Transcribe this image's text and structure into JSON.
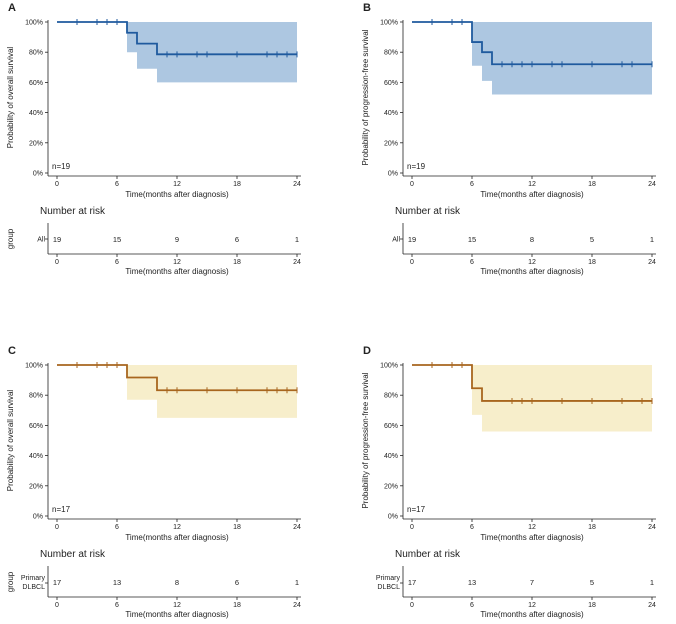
{
  "chart_data": [
    {
      "type": "line",
      "panel": "A",
      "ylabel": "Probability of overall survival",
      "xlabel": "Time(months after diagnosis)",
      "xticks": [
        "0",
        "6",
        "12",
        "18",
        "24"
      ],
      "yticks": [
        "0%",
        "20%",
        "40%",
        "60%",
        "80%",
        "100%"
      ],
      "xlim": [
        0,
        24
      ],
      "ylim": [
        0,
        1
      ],
      "color": "#1f5a9e",
      "band_color": "#a9c4df",
      "n_label": "n=19",
      "steps": [
        [
          0,
          1.0
        ],
        [
          7,
          0.929
        ],
        [
          8,
          0.857
        ],
        [
          10,
          0.786
        ],
        [
          24,
          0.786
        ]
      ],
      "band": [
        [
          0,
          1.0,
          1.0
        ],
        [
          7,
          1.0,
          0.8
        ],
        [
          8,
          1.0,
          0.69
        ],
        [
          10,
          1.0,
          0.6
        ],
        [
          24,
          1.0,
          0.6
        ]
      ],
      "censors": [
        2,
        4,
        5,
        6,
        11,
        12,
        14,
        15,
        18,
        21,
        22,
        23,
        24
      ],
      "risk": {
        "title": "Number at risk",
        "group_axis": "group",
        "group": "All",
        "times": [
          0,
          6,
          12,
          18,
          24
        ],
        "values": [
          "19",
          "15",
          "9",
          "6",
          "1"
        ],
        "xlabel": "Time(months after diagnosis)"
      }
    },
    {
      "type": "line",
      "panel": "B",
      "ylabel": "Probability of progression-free survival",
      "xlabel": "Time(months after diagnosis)",
      "xticks": [
        "0",
        "6",
        "12",
        "18",
        "24"
      ],
      "yticks": [
        "0%",
        "20%",
        "40%",
        "60%",
        "80%",
        "100%"
      ],
      "xlim": [
        0,
        24
      ],
      "ylim": [
        0,
        1
      ],
      "color": "#1f5a9e",
      "band_color": "#a9c4df",
      "n_label": "n=19",
      "steps": [
        [
          0,
          1.0
        ],
        [
          6,
          0.867
        ],
        [
          7,
          0.8
        ],
        [
          8,
          0.72
        ],
        [
          24,
          0.72
        ]
      ],
      "band": [
        [
          0,
          1.0,
          1.0
        ],
        [
          6,
          1.0,
          0.71
        ],
        [
          7,
          1.0,
          0.61
        ],
        [
          8,
          1.0,
          0.52
        ],
        [
          24,
          1.0,
          0.52
        ]
      ],
      "censors": [
        2,
        4,
        5,
        9,
        10,
        11,
        12,
        14,
        15,
        18,
        21,
        22,
        24
      ],
      "risk": {
        "title": "Number at risk",
        "group_axis": "",
        "group": "All",
        "times": [
          0,
          6,
          12,
          18,
          24
        ],
        "values": [
          "19",
          "15",
          "8",
          "5",
          "1"
        ],
        "xlabel": "Time(months after diagnosis)"
      }
    },
    {
      "type": "line",
      "panel": "C",
      "ylabel": "Probability of overall survival",
      "xlabel": "Time(months after diagnosis)",
      "xticks": [
        "0",
        "6",
        "12",
        "18",
        "24"
      ],
      "yticks": [
        "0%",
        "20%",
        "40%",
        "60%",
        "80%",
        "100%"
      ],
      "xlim": [
        0,
        24
      ],
      "ylim": [
        0,
        1
      ],
      "color": "#a8661e",
      "band_color": "#f7edc8",
      "n_label": "n=17",
      "steps": [
        [
          0,
          1.0
        ],
        [
          7,
          0.917
        ],
        [
          10,
          0.833
        ],
        [
          24,
          0.833
        ]
      ],
      "band": [
        [
          0,
          1.0,
          1.0
        ],
        [
          7,
          1.0,
          0.77
        ],
        [
          10,
          1.0,
          0.65
        ],
        [
          24,
          1.0,
          0.65
        ]
      ],
      "censors": [
        2,
        4,
        5,
        6,
        11,
        12,
        15,
        18,
        21,
        22,
        23,
        24
      ],
      "risk": {
        "title": "Number at risk",
        "group_axis": "group",
        "group_lines": [
          "Primary",
          "DLBCL"
        ],
        "times": [
          0,
          6,
          12,
          18,
          24
        ],
        "values": [
          "17",
          "13",
          "8",
          "6",
          "1"
        ],
        "xlabel": "Time(months after diagnosis)"
      }
    },
    {
      "type": "line",
      "panel": "D",
      "ylabel": "Probability of progression-free survival",
      "xlabel": "Time(months after diagnosis)",
      "xticks": [
        "0",
        "6",
        "12",
        "18",
        "24"
      ],
      "yticks": [
        "0%",
        "20%",
        "40%",
        "60%",
        "80%",
        "100%"
      ],
      "xlim": [
        0,
        24
      ],
      "ylim": [
        0,
        1
      ],
      "color": "#a8661e",
      "band_color": "#f7edc8",
      "n_label": "n=17",
      "steps": [
        [
          0,
          1.0
        ],
        [
          6,
          0.846
        ],
        [
          7,
          0.762
        ],
        [
          24,
          0.762
        ]
      ],
      "band": [
        [
          0,
          1.0,
          1.0
        ],
        [
          6,
          1.0,
          0.67
        ],
        [
          7,
          1.0,
          0.56
        ],
        [
          24,
          1.0,
          0.56
        ]
      ],
      "censors": [
        2,
        4,
        5,
        10,
        11,
        12,
        15,
        18,
        21,
        23,
        24
      ],
      "risk": {
        "title": "Number at risk",
        "group_axis": "",
        "group_lines": [
          "Primary",
          "DLBCL"
        ],
        "times": [
          0,
          6,
          12,
          18,
          24
        ],
        "values": [
          "17",
          "13",
          "7",
          "5",
          "1"
        ],
        "xlabel": "Time(months after diagnosis)"
      }
    }
  ]
}
